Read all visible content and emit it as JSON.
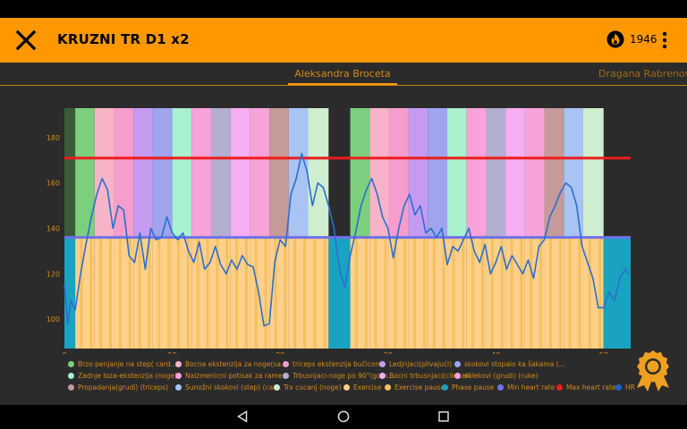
{
  "header": {
    "title": "KRUZNI TR D1 x2",
    "calories": "1946"
  },
  "tabs": [
    {
      "label": "Aleksandra Broceta"
    },
    {
      "label": "Dragana Rabrenovic"
    }
  ],
  "chart_data": {
    "type": "line",
    "x_ticks": [
      0,
      10,
      20,
      30,
      40,
      50
    ],
    "y_ticks": [
      100,
      120,
      140,
      160,
      180
    ],
    "xlim": [
      0,
      52.5
    ],
    "ylim": [
      87,
      193
    ],
    "min_heart_rate": 136,
    "max_heart_rate": 171,
    "phases": [
      {
        "name": "Brzo penjanje na step( card...",
        "color": "#7ccf7c",
        "x0": 1,
        "x1": 2.8
      },
      {
        "name": "Bocna ekstenzija za noge(sa...",
        "color": "#f7b3c7",
        "x0": 2.8,
        "x1": 4.6
      },
      {
        "name": "triceps ekstenzija bučicom",
        "color": "#f59dcc",
        "x0": 4.6,
        "x1": 6.4
      },
      {
        "name": "Ledjnjaci(plivajući)",
        "color": "#c59bf2",
        "x0": 6.4,
        "x1": 8.2
      },
      {
        "name": "skokovi stopalo ka šakama (...",
        "color": "#9ea4ee",
        "x0": 8.2,
        "x1": 10.0
      },
      {
        "name": "Zadnje loza-ekstenzija (noge)",
        "color": "#a8f0ce",
        "x0": 10.0,
        "x1": 11.8
      },
      {
        "name": "Naizmenicni potisak za rame...",
        "color": "#f7a3d9",
        "x0": 11.8,
        "x1": 13.6
      },
      {
        "name": "Trbusnjaci-noge po 90°(gorn...",
        "color": "#b4aed0",
        "x0": 13.6,
        "x1": 15.4
      },
      {
        "name": "Bocni trbusnjaci(cik-cak)",
        "color": "#f5aef2",
        "x0": 15.4,
        "x1": 17.2
      },
      {
        "name": "sklekovi (grudi) (ruke)",
        "color": "#f7a3d9",
        "x0": 17.2,
        "x1": 19.0
      },
      {
        "name": "Propadanja(grudi) (triceps)",
        "color": "#c59a99",
        "x0": 19.0,
        "x1": 20.8
      },
      {
        "name": "Sunožni skokovi (step) (car...",
        "color": "#a9c3f2",
        "x0": 20.8,
        "x1": 22.6
      },
      {
        "name": "Trx cucanj (noge)",
        "color": "#cfeecf",
        "x0": 22.6,
        "x1": 24.5
      },
      {
        "name": "Brzo penjanje na step( card...",
        "color": "#7ccf7c",
        "x0": 26.5,
        "x1": 28.3
      },
      {
        "name": "Bocna ekstenzija za noge(sa...",
        "color": "#f7b3c7",
        "x0": 28.3,
        "x1": 30.1
      },
      {
        "name": "triceps ekstenzija bučicom",
        "color": "#f59dcc",
        "x0": 30.1,
        "x1": 31.9
      },
      {
        "name": "Ledjnjaci(plivajući)",
        "color": "#c59bf2",
        "x0": 31.9,
        "x1": 33.7
      },
      {
        "name": "skokovi stopalo ka šakama (...",
        "color": "#9ea4ee",
        "x0": 33.7,
        "x1": 35.5
      },
      {
        "name": "Zadnje loza-ekstenzija (noge)",
        "color": "#a8f0ce",
        "x0": 35.5,
        "x1": 37.3
      },
      {
        "name": "Naizmenicni potisak za rame...",
        "color": "#f7a3d9",
        "x0": 37.3,
        "x1": 39.1
      },
      {
        "name": "Trbusnjaci-noge po 90°(gorn...",
        "color": "#b4aed0",
        "x0": 39.1,
        "x1": 40.9
      },
      {
        "name": "Bocni trbusnjaci(cik-cak)",
        "color": "#f5aef2",
        "x0": 40.9,
        "x1": 42.7
      },
      {
        "name": "sklekovi (grudi) (ruke)",
        "color": "#f7a3d9",
        "x0": 42.7,
        "x1": 44.5
      },
      {
        "name": "Propadanja(grudi) (triceps)",
        "color": "#c59a99",
        "x0": 44.5,
        "x1": 46.3
      },
      {
        "name": "Sunožni skokovi (step) (car...",
        "color": "#a9c3f2",
        "x0": 46.3,
        "x1": 48.1
      },
      {
        "name": "Trx cucanj (noge)",
        "color": "#cfeecf",
        "x0": 48.1,
        "x1": 50.0
      }
    ],
    "phase_pause": [
      [
        24.5,
        26.5
      ],
      [
        50.0,
        52.5
      ]
    ],
    "hr_series": {
      "x": [
        0,
        0.3,
        0.6,
        1,
        1.5,
        2,
        2.5,
        3,
        3.5,
        4,
        4.5,
        5,
        5.5,
        6,
        6.5,
        7,
        7.5,
        8,
        8.5,
        9,
        9.5,
        10,
        10.5,
        11,
        11.5,
        12,
        12.5,
        13,
        13.5,
        14,
        14.5,
        15,
        15.5,
        16,
        16.5,
        17,
        17.5,
        18,
        18.5,
        19,
        19.5,
        20,
        20.5,
        21,
        21.5,
        22,
        22.5,
        23,
        23.5,
        24,
        24.5,
        25,
        25.5,
        26,
        26.5,
        27,
        27.5,
        28,
        28.5,
        29,
        29.5,
        30,
        30.5,
        31,
        31.5,
        32,
        32.5,
        33,
        33.5,
        34,
        34.5,
        35,
        35.5,
        36,
        36.5,
        37,
        37.5,
        38,
        38.5,
        39,
        39.5,
        40,
        40.5,
        41,
        41.5,
        42,
        42.5,
        43,
        43.5,
        44,
        44.5,
        45,
        45.5,
        46,
        46.5,
        47,
        47.5,
        48,
        48.5,
        49,
        49.5,
        50,
        50.5,
        51,
        51.5,
        52,
        52.3
      ],
      "y": [
        115,
        98,
        108,
        104,
        120,
        133,
        145,
        155,
        162,
        157,
        140,
        150,
        148,
        128,
        125,
        138,
        122,
        140,
        135,
        136,
        145,
        138,
        135,
        138,
        130,
        125,
        134,
        122,
        125,
        132,
        124,
        120,
        126,
        122,
        128,
        124,
        123,
        112,
        97,
        98,
        125,
        135,
        132,
        155,
        162,
        173,
        165,
        150,
        160,
        158,
        150,
        140,
        122,
        114,
        128,
        138,
        150,
        157,
        162,
        155,
        145,
        140,
        127,
        140,
        150,
        155,
        146,
        150,
        138,
        140,
        136,
        140,
        124,
        132,
        130,
        135,
        140,
        130,
        125,
        133,
        120,
        125,
        132,
        122,
        128,
        124,
        120,
        126,
        118,
        132,
        135,
        145,
        150,
        156,
        160,
        158,
        150,
        132,
        125,
        118,
        105,
        105,
        112,
        108,
        118,
        122,
        120
      ]
    }
  },
  "legend": [
    {
      "label": "Brzo penjanje na step( card...",
      "color": "#7ccf7c"
    },
    {
      "label": "Bocna ekstenzija za noge(sa...",
      "color": "#f7b3c7"
    },
    {
      "label": "triceps ekstenzija bučicom",
      "color": "#f59dcc"
    },
    {
      "label": "Ledjnjaci(plivajući)",
      "color": "#c59bf2"
    },
    {
      "label": "skokovi stopalo ka šakama (...",
      "color": "#9ea4ee"
    },
    {
      "label": "Zadnje loza-ekstenzija (noge)",
      "color": "#a8f0ce"
    },
    {
      "label": "Naizmenicni potisak za rame...",
      "color": "#f7a3d9"
    },
    {
      "label": "Trbusnjaci-noge po 90°(gorn...",
      "color": "#b4aed0"
    },
    {
      "label": "Bocni trbusnjaci(cik-cak)",
      "color": "#f5aef2"
    },
    {
      "label": "sklekovi (grudi) (ruke)",
      "color": "#f7a3d9"
    },
    {
      "label": "Propadanja(grudi) (triceps)",
      "color": "#c59a99"
    },
    {
      "label": "Sunožni skokovi (step) (car...",
      "color": "#a9c3f2"
    },
    {
      "label": "Trx cucanj (noge)",
      "color": "#cfeecf"
    },
    {
      "label": "Exercise",
      "color": "#ffd08a"
    },
    {
      "label": "Exercise pause",
      "color": "#f5c060"
    },
    {
      "label": "Phase pause",
      "color": "#19a3c0"
    },
    {
      "label": "Min heart rate",
      "color": "#6f72e8"
    },
    {
      "label": "Max heart rate",
      "color": "#ee1c1c"
    },
    {
      "label": "HR",
      "color": "#1e63c8"
    }
  ],
  "colors": {
    "accent": "#ff9800",
    "exercise": "#ffd08a",
    "exercise_pause": "#f5c060",
    "phase_pause": "#19a3c0",
    "hr": "#2b6fce",
    "min_hr": "#6f72e8",
    "max_hr": "#ee1c1c"
  }
}
